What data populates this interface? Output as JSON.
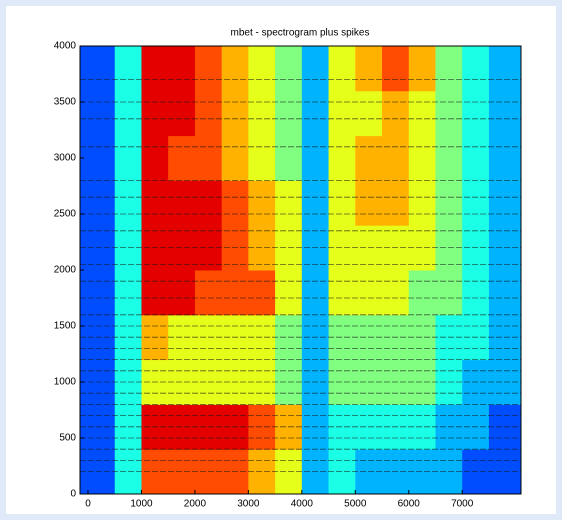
{
  "chart_data": {
    "type": "heatmap",
    "title": "mbet - spectrogram plus spikes",
    "x_edges": [
      -150,
      500,
      1000,
      1500,
      2000,
      2500,
      3000,
      3500,
      4000,
      4500,
      5000,
      5500,
      6000,
      6500,
      7000,
      7500,
      8100
    ],
    "y_edges": [
      0,
      400,
      800,
      1200,
      1600,
      2000,
      2400,
      2800,
      3200,
      3600,
      4000
    ],
    "values": [
      [
        2,
        4,
        8,
        8,
        8,
        8,
        7,
        6,
        3,
        4,
        3,
        3,
        3,
        3,
        2,
        2
      ],
      [
        2,
        4,
        9,
        9,
        9,
        9,
        8,
        7,
        3,
        4,
        4,
        4,
        4,
        3,
        3,
        2
      ],
      [
        2,
        4,
        6,
        6,
        6,
        6,
        6,
        5,
        3,
        5,
        5,
        5,
        5,
        4,
        3,
        3
      ],
      [
        2,
        4,
        7,
        6,
        6,
        6,
        6,
        5,
        3,
        5,
        5,
        5,
        5,
        4,
        4,
        3
      ],
      [
        2,
        4,
        9,
        9,
        8,
        8,
        8,
        6,
        3,
        6,
        6,
        6,
        5,
        5,
        4,
        3
      ],
      [
        2,
        4,
        9,
        9,
        9,
        8,
        7,
        6,
        3,
        6,
        6,
        6,
        6,
        5,
        4,
        3
      ],
      [
        2,
        4,
        9,
        9,
        9,
        8,
        7,
        6,
        3,
        6,
        7,
        7,
        6,
        5,
        4,
        3
      ],
      [
        2,
        4,
        9,
        8,
        8,
        7,
        6,
        5,
        3,
        6,
        7,
        7,
        6,
        5,
        4,
        3
      ],
      [
        2,
        4,
        9,
        9,
        8,
        7,
        6,
        5,
        3,
        6,
        6,
        7,
        6,
        5,
        4,
        3
      ],
      [
        2,
        4,
        9,
        9,
        8,
        7,
        6,
        5,
        3,
        6,
        7,
        8,
        7,
        5,
        4,
        3
      ]
    ],
    "clim": [
      0,
      10
    ],
    "colormap": "jet",
    "spike_channels": [
      200,
      300,
      400,
      500,
      600,
      700,
      800,
      900,
      1000,
      1100,
      1200,
      1300,
      1400,
      1500,
      1600,
      1750,
      1900,
      2050,
      2200,
      2350,
      2500,
      2650,
      2800,
      3100,
      3350,
      3500,
      3700
    ],
    "spike_color": "#1a1a1a",
    "xlim": [
      -150,
      8100
    ],
    "ylim": [
      0,
      4000
    ],
    "xticks": [
      0,
      1000,
      2000,
      3000,
      4000,
      5000,
      6000,
      7000
    ],
    "yticks": [
      0,
      500,
      1000,
      1500,
      2000,
      2500,
      3000,
      3500,
      4000
    ]
  }
}
